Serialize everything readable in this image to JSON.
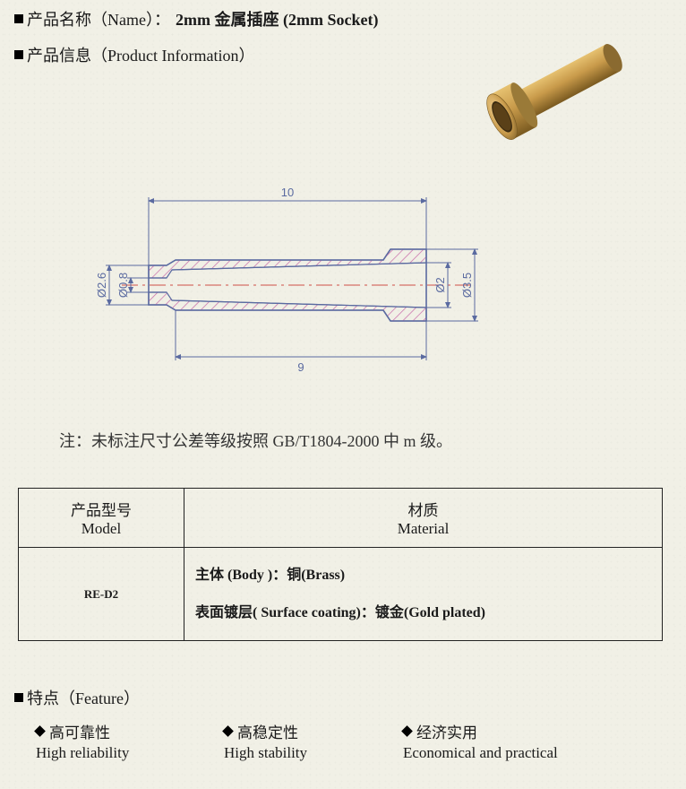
{
  "header": {
    "name_label": "产品名称（Name）：",
    "name_value": "2mm 金属插座  (2mm Socket)",
    "info_label": "产品信息（Product Information）"
  },
  "render3d": {
    "body_color": "#c89a4a",
    "body_color_dark": "#7a5a20",
    "body_color_light": "#e6c170",
    "hole_color": "#5a4018"
  },
  "diagram": {
    "outline_color": "#5a6aa0",
    "dim_color": "#5a6aa0",
    "center_color": "#d05048",
    "hatch_color": "#c868a8",
    "dims": {
      "top_overall": "10",
      "bottom_body": "9",
      "d_outer_left": "Ø2.6",
      "d_inner_left": "Ø0.8",
      "d_inner_right": "Ø2",
      "d_flange": "Ø3.5"
    }
  },
  "note": "注：未标注尺寸公差等级按照 GB/T1804-2000 中 m 级。",
  "table": {
    "col1_header_cn": "产品型号",
    "col1_header_en": "Model",
    "col2_header_cn": "材质",
    "col2_header_en": "Material",
    "model": "RE-D2",
    "material_line1": "主体 (Body )：铜(Brass)",
    "material_line2": "表面镀层( Surface coating)：镀金(Gold plated)"
  },
  "features": {
    "heading": "特点（Feature）",
    "items": [
      {
        "cn": "高可靠性",
        "en": "High reliability"
      },
      {
        "cn": "高稳定性",
        "en": "High stability"
      },
      {
        "cn": "经济实用",
        "en": "Economical and practical"
      }
    ]
  }
}
